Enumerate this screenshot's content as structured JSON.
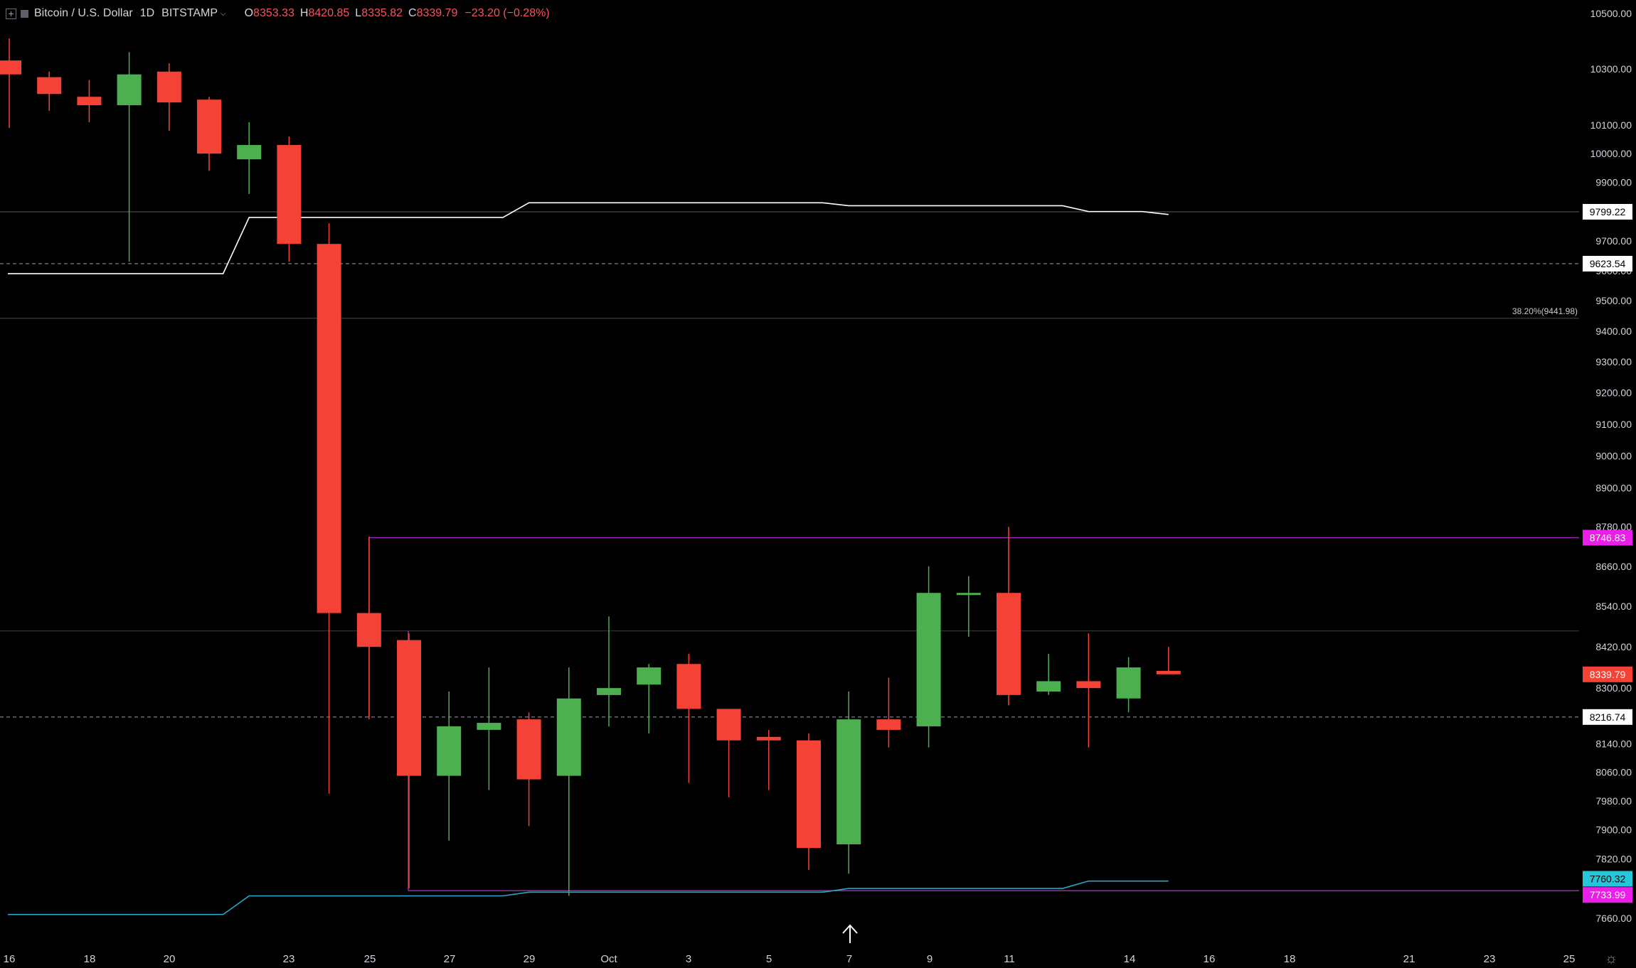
{
  "legend": {
    "symbol": "Bitcoin / U.S. Dollar",
    "interval": "1D",
    "exchange": "BITSTAMP",
    "open_label": "O",
    "open_value": "8353.33",
    "high_label": "H",
    "high_value": "8420.85",
    "low_label": "L",
    "low_value": "8335.82",
    "close_label": "C",
    "close_value": "8339.79",
    "change": "−23.20 (−0.28%)"
  },
  "colors": {
    "background": "#000000",
    "up": "#4caf50",
    "down": "#f44336",
    "donchian_upper": "#ffffff",
    "donchian_lower": "#26a9c8",
    "range_box": "#9c27b0",
    "range_label": "#e91ee9",
    "price_label": "#f44336",
    "cyan_label": "#26c6da",
    "axis_text": "#d1d4dc"
  },
  "chart_data": {
    "type": "candlestick",
    "x_ticks": [
      "16",
      "18",
      "20",
      "23",
      "25",
      "27",
      "29",
      "Oct",
      "3",
      "5",
      "7",
      "9",
      "11",
      "14",
      "16",
      "18",
      "21",
      "23",
      "25"
    ],
    "y_ticks": [
      "10500.00",
      "10300.00",
      "10100.00",
      "10000.00",
      "9900.00",
      "9700.00",
      "9600.00",
      "9500.00",
      "9400.00",
      "9300.00",
      "9200.00",
      "9100.00",
      "9000.00",
      "8900.00",
      "8780.00",
      "8660.00",
      "8540.00",
      "8420.00",
      "8300.00",
      "8140.00",
      "8060.00",
      "7980.00",
      "7900.00",
      "7820.00",
      "7660.00"
    ],
    "candles": [
      {
        "open": 10330,
        "high": 10410,
        "low": 10090,
        "close": 10280
      },
      {
        "open": 10270,
        "high": 10290,
        "low": 10150,
        "close": 10210
      },
      {
        "open": 10200,
        "high": 10260,
        "low": 10110,
        "close": 10170
      },
      {
        "open": 10170,
        "high": 10360,
        "low": 9630,
        "close": 10280
      },
      {
        "open": 10290,
        "high": 10320,
        "low": 10080,
        "close": 10180
      },
      {
        "open": 10190,
        "high": 10200,
        "low": 9940,
        "close": 10000
      },
      {
        "open": 9980,
        "high": 10110,
        "low": 9860,
        "close": 10030
      },
      {
        "open": 10030,
        "high": 10060,
        "low": 9630,
        "close": 9690
      },
      {
        "open": 9690,
        "high": 9760,
        "low": 8000,
        "close": 8520
      },
      {
        "open": 8520,
        "high": 8750,
        "low": 8210,
        "close": 8420
      },
      {
        "open": 8440,
        "high": 8460,
        "low": 7740,
        "close": 8050
      },
      {
        "open": 8050,
        "high": 8290,
        "low": 7870,
        "close": 8190
      },
      {
        "open": 8180,
        "high": 8360,
        "low": 8010,
        "close": 8200
      },
      {
        "open": 8210,
        "high": 8230,
        "low": 7910,
        "close": 8040
      },
      {
        "open": 8050,
        "high": 8360,
        "low": 7720,
        "close": 8270
      },
      {
        "open": 8280,
        "high": 8510,
        "low": 8190,
        "close": 8300
      },
      {
        "open": 8310,
        "high": 8370,
        "low": 8170,
        "close": 8360
      },
      {
        "open": 8370,
        "high": 8400,
        "low": 8030,
        "close": 8240
      },
      {
        "open": 8240,
        "high": 8240,
        "low": 7990,
        "close": 8150
      },
      {
        "open": 8160,
        "high": 8180,
        "low": 8010,
        "close": 8150
      },
      {
        "open": 8150,
        "high": 8170,
        "low": 7790,
        "close": 7850
      },
      {
        "open": 7860,
        "high": 8290,
        "low": 7780,
        "close": 8210
      },
      {
        "open": 8210,
        "high": 8330,
        "low": 8130,
        "close": 8180
      },
      {
        "open": 8190,
        "high": 8660,
        "low": 8130,
        "close": 8580
      },
      {
        "open": 8580,
        "high": 8630,
        "low": 8450,
        "close": 8580
      },
      {
        "open": 8580,
        "high": 8780,
        "low": 8250,
        "close": 8280
      },
      {
        "open": 8290,
        "high": 8400,
        "low": 8280,
        "close": 8320
      },
      {
        "open": 8320,
        "high": 8460,
        "low": 8130,
        "close": 8300
      },
      {
        "open": 8270,
        "high": 8390,
        "low": 8230,
        "close": 8360
      },
      {
        "open": 8350,
        "high": 8420,
        "low": 8340,
        "close": 8340
      }
    ],
    "donchian_upper": [
      9590,
      9590,
      9590,
      9590,
      9590,
      9590,
      9780,
      9780,
      9780,
      9780,
      9780,
      9780,
      9780,
      9830,
      9830,
      9830,
      9830,
      9830,
      9830,
      9830,
      9830,
      9820,
      9820,
      9820,
      9820,
      9820,
      9820,
      9800,
      9800,
      9790
    ],
    "donchian_lower": [
      7670,
      7670,
      7670,
      7670,
      7670,
      7670,
      7720,
      7720,
      7720,
      7720,
      7720,
      7720,
      7720,
      7730,
      7730,
      7730,
      7730,
      7730,
      7730,
      7730,
      7730,
      7740,
      7740,
      7740,
      7740,
      7740,
      7740,
      7760,
      7760,
      7760
    ],
    "range_box": {
      "top": 8746.83,
      "bottom": 7733.99
    },
    "horizontal_lines": [
      9799.22,
      9623.54,
      9441.98,
      8467,
      8216.74
    ],
    "fib_label": "38.20%(9441.98)",
    "price_labels": {
      "upper": "9799.22",
      "dashed_upper": "9623.54",
      "range_top": "8746.83",
      "last": "8339.79",
      "dashed_lower": "8216.74",
      "lower_channel": "7760.32",
      "range_bottom": "7733.99"
    },
    "grid": false,
    "y_scale": "log"
  }
}
